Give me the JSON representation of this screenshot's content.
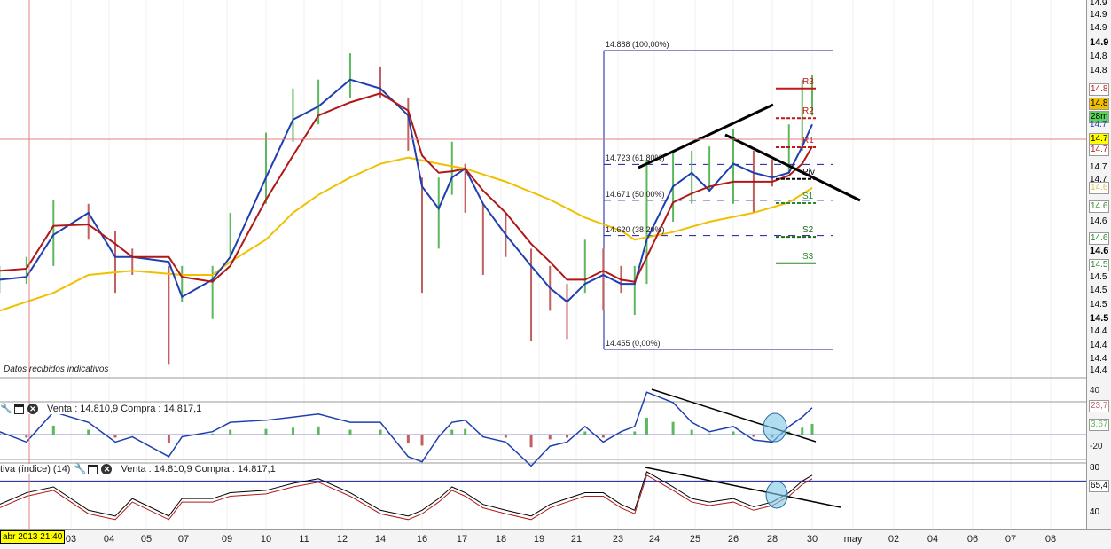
{
  "note": "Datos recibidos indicativos",
  "indicator1": {
    "header": "Venta : 14.810,9 Compra : 14.817,1",
    "axis": [
      "40",
      "23,7",
      "3,67",
      "-20"
    ]
  },
  "indicator2": {
    "title": "tiva (índice) (14)",
    "header": "Venta : 14.810,9 Compra : 14.817,1",
    "axis": [
      "80",
      "65,4",
      "40"
    ]
  },
  "crosshair": {
    "date_label": "abr 2013 21:40",
    "price_label": "14.7"
  },
  "price_axis": [
    "14.9",
    "14.9",
    "14.9",
    "14.9",
    "14.8",
    "14.8",
    "14.8",
    "14.8",
    "28m",
    "14.7",
    "14.7",
    "14.7",
    "14.7",
    "14.7",
    "14.6",
    "14.6",
    "14.6",
    "14.6",
    "14.6",
    "14.5",
    "14.5",
    "14.5",
    "14.5",
    "14.5",
    "14.4",
    "14.4",
    "14.4",
    "14.4"
  ],
  "colors": {
    "up": "#5cb85c",
    "down": "#c06060",
    "ma_fast": "#1f3fb0",
    "ma_mid": "#b01818",
    "ma_slow": "#f0c000",
    "fib": "#1a1aa0",
    "crosshair": "#e08080"
  },
  "chart_data": {
    "type": "line",
    "x_ticks": [
      {
        "label": "03",
        "date": "04-03"
      },
      {
        "label": "04",
        "date": "04-04"
      },
      {
        "label": "05",
        "date": "04-05"
      },
      {
        "label": "07",
        "date": "04-07"
      },
      {
        "label": "09",
        "date": "04-09"
      },
      {
        "label": "10",
        "date": "04-10"
      },
      {
        "label": "11",
        "date": "04-11"
      },
      {
        "label": "12",
        "date": "04-12"
      },
      {
        "label": "14",
        "date": "04-14"
      },
      {
        "label": "16",
        "date": "04-16"
      },
      {
        "label": "17",
        "date": "04-17"
      },
      {
        "label": "18",
        "date": "04-18"
      },
      {
        "label": "19",
        "date": "04-19"
      },
      {
        "label": "21",
        "date": "04-21"
      },
      {
        "label": "23",
        "date": "04-23"
      },
      {
        "label": "24",
        "date": "04-24"
      },
      {
        "label": "25",
        "date": "04-25"
      },
      {
        "label": "26",
        "date": "04-26"
      },
      {
        "label": "28",
        "date": "04-28"
      },
      {
        "label": "30",
        "date": "04-30"
      },
      {
        "label": "may",
        "date": "05-01"
      },
      {
        "label": "02",
        "date": "05-02"
      },
      {
        "label": "04",
        "date": "05-04"
      },
      {
        "label": "06",
        "date": "05-06"
      },
      {
        "label": "07",
        "date": "05-07"
      },
      {
        "label": "08",
        "date": "05-08"
      }
    ],
    "ylim": [
      14.43,
      14.96
    ],
    "times": [
      "04-01 03",
      "04-01 20",
      "04-02 13",
      "04-03 11",
      "04-04 04",
      "04-04 15",
      "04-06 05",
      "04-06 22",
      "04-08 08",
      "04-09 02",
      "04-10 00",
      "04-10 17",
      "04-11 09",
      "04-12 10",
      "04-14 00",
      "04-15 08",
      "04-16 00",
      "04-16 10",
      "04-16 18",
      "04-17 02",
      "04-17 13",
      "04-18 03",
      "04-18 19",
      "04-19 14",
      "04-20 12",
      "04-21 10",
      "04-22 07",
      "04-23 02",
      "04-23 11",
      "04-23 19",
      "04-24 11",
      "04-24 22",
      "04-25 09",
      "04-26 00",
      "04-27 01",
      "04-28 00",
      "04-28 20",
      "04-29 12",
      "04-30 00"
    ],
    "price_high": [
      14.576,
      14.589,
      14.672,
      14.666,
      14.627,
      14.601,
      14.576,
      14.576,
      14.576,
      14.653,
      14.769,
      14.833,
      14.846,
      14.884,
      14.865,
      14.82,
      14.704,
      14.704,
      14.756,
      14.724,
      14.666,
      14.653,
      14.601,
      14.576,
      14.55,
      14.614,
      14.601,
      14.576,
      14.576,
      14.73,
      14.743,
      14.743,
      14.749,
      14.775,
      14.743,
      14.73,
      14.781,
      14.846,
      14.852
    ],
    "price_low": [
      14.537,
      14.55,
      14.576,
      14.614,
      14.537,
      14.563,
      14.434,
      14.524,
      14.499,
      14.589,
      14.666,
      14.756,
      14.781,
      14.82,
      14.82,
      14.743,
      14.537,
      14.601,
      14.679,
      14.653,
      14.563,
      14.589,
      14.467,
      14.511,
      14.47,
      14.537,
      14.511,
      14.537,
      14.505,
      14.55,
      14.64,
      14.666,
      14.685,
      14.666,
      14.653,
      14.691,
      14.711,
      14.743,
      14.794
    ],
    "series": [
      {
        "key": "ma_fast",
        "values": [
          14.556,
          14.56,
          14.621,
          14.653,
          14.589,
          14.589,
          14.582,
          14.531,
          14.556,
          14.589,
          14.704,
          14.788,
          14.807,
          14.846,
          14.833,
          14.794,
          14.691,
          14.659,
          14.704,
          14.717,
          14.666,
          14.621,
          14.576,
          14.544,
          14.524,
          14.55,
          14.563,
          14.55,
          14.55,
          14.614,
          14.691,
          14.711,
          14.685,
          14.724,
          14.711,
          14.704,
          14.711,
          14.749,
          14.781
        ]
      },
      {
        "key": "ma_mid",
        "values": [
          14.569,
          14.572,
          14.634,
          14.636,
          14.608,
          14.589,
          14.589,
          14.56,
          14.553,
          14.576,
          14.672,
          14.736,
          14.794,
          14.813,
          14.826,
          14.801,
          14.736,
          14.711,
          14.713,
          14.717,
          14.685,
          14.653,
          14.608,
          14.582,
          14.556,
          14.556,
          14.569,
          14.556,
          14.553,
          14.589,
          14.668,
          14.681,
          14.691,
          14.698,
          14.698,
          14.698,
          14.707,
          14.724,
          14.749
        ]
      }
    ],
    "slow_ma": {
      "times": [
        "04-01 03",
        "04-02 13",
        "04-03 11",
        "04-04 15",
        "04-06 22",
        "04-08 08",
        "04-09 02",
        "04-10 00",
        "04-10 17",
        "04-11 09",
        "04-12 10",
        "04-14 00",
        "04-15 08",
        "04-16 10",
        "04-17 02",
        "04-18 03",
        "04-19 14",
        "04-21 10",
        "04-23 02",
        "04-23 11",
        "04-24 11",
        "04-25 09",
        "04-27 01",
        "04-28 20",
        "04-30 00"
      ],
      "values": [
        14.511,
        14.537,
        14.563,
        14.569,
        14.563,
        14.563,
        14.582,
        14.614,
        14.653,
        14.679,
        14.704,
        14.724,
        14.733,
        14.724,
        14.717,
        14.698,
        14.672,
        14.646,
        14.627,
        14.614,
        14.625,
        14.64,
        14.653,
        14.668,
        14.689
      ]
    },
    "fibonacci": [
      {
        "label": "14.888 (100,00%)",
        "value": 14.888
      },
      {
        "label": "14.723 (61,80%)",
        "value": 14.723
      },
      {
        "label": "14.671 (50,00%)",
        "value": 14.671
      },
      {
        "label": "14.620 (38,20%)",
        "value": 14.62
      },
      {
        "label": "14.455 (0,00%)",
        "value": 14.455
      }
    ],
    "pivots": [
      {
        "label": "R3",
        "value": 14.833,
        "color": "#c01818",
        "style": "solid"
      },
      {
        "label": "R2",
        "value": 14.79,
        "color": "#c01818",
        "style": "dash"
      },
      {
        "label": "R1",
        "value": 14.748,
        "color": "#c01818",
        "style": "dash"
      },
      {
        "label": "Piv",
        "value": 14.702,
        "color": "#000000",
        "style": "dash"
      },
      {
        "label": "S1",
        "value": 14.667,
        "color": "#2a8a2a",
        "style": "dash"
      },
      {
        "label": "S2",
        "value": 14.618,
        "color": "#1a6a1a",
        "style": "dash"
      },
      {
        "label": "S3",
        "value": 14.58,
        "color": "#2a8a2a",
        "style": "solid"
      }
    ],
    "indicator1_values": [
      3,
      -7,
      22,
      12,
      -7,
      -2,
      -21,
      -2,
      3,
      12,
      14,
      17,
      20,
      12,
      12,
      -21,
      -26,
      -2,
      12,
      14,
      -2,
      -7,
      -30,
      -11,
      -7,
      8,
      -7,
      3,
      8,
      41,
      31,
      12,
      3,
      8,
      -5,
      -7,
      8,
      17,
      26
    ],
    "indicator1_ylim": [
      -22,
      42
    ],
    "indicator2_values": [
      50,
      60,
      65,
      45,
      40,
      55,
      40,
      55,
      55,
      60,
      62,
      68,
      72,
      60,
      45,
      40,
      45,
      55,
      65,
      60,
      50,
      45,
      40,
      50,
      55,
      60,
      60,
      50,
      45,
      78,
      65,
      55,
      52,
      55,
      48,
      52,
      60,
      70,
      75
    ],
    "indicator2_ylim": [
      30,
      84
    ],
    "indicator2_level": 70
  }
}
